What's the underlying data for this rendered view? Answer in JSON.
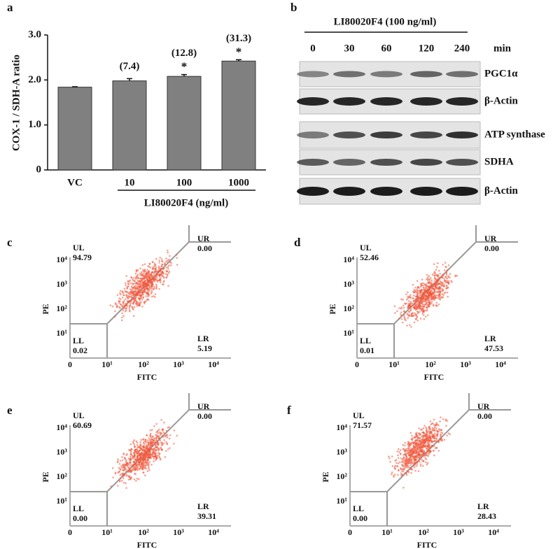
{
  "chart_data": {
    "type": "bar",
    "panel_label": "a",
    "ylabel": "COX-1 / SDH-A ratio",
    "categories": [
      "VC",
      "10",
      "100",
      "1000"
    ],
    "values": [
      1.84,
      1.98,
      2.08,
      2.42
    ],
    "errors": [
      0.01,
      0.05,
      0.04,
      0.03
    ],
    "annotations": [
      null,
      "(7.4)",
      "(12.8)",
      "(31.3)"
    ],
    "significance": [
      null,
      null,
      "*",
      "*"
    ],
    "xlabel": "LI80020F4 (ng/ml)",
    "color": "#808080",
    "ylim": [
      0,
      3
    ],
    "yticks": [
      0,
      {
        "value": 1,
        "label": "1.0"
      },
      {
        "value": 2,
        "label": "2.0"
      },
      {
        "value": 3,
        "label": "3.0"
      }
    ]
  },
  "blot": {
    "panel_label": "b",
    "treatment": "LI80020F4 (100 ng/ml)",
    "lanes": [
      "0",
      "30",
      "60",
      "120",
      "240"
    ],
    "lane_unit": "min",
    "rows": [
      "PGC1α",
      "β-Actin",
      "ATP synthase",
      "SDHA",
      "β-Actin"
    ]
  },
  "flow_plots": [
    {
      "panel_label": "c",
      "ylabel": "PE",
      "xlabel": "FITC",
      "quadrants": [
        {
          "name": "UL",
          "value": "94.79"
        },
        {
          "name": "UR",
          "value": "0.00"
        },
        {
          "name": "LL",
          "value": "0.02"
        },
        {
          "name": "LR",
          "value": "5.19"
        }
      ],
      "yticks": [
        "10⁴",
        "10³",
        "10²",
        "10¹"
      ],
      "xticks": [
        "0",
        "10¹",
        "10²",
        "10³",
        "10⁴"
      ]
    },
    {
      "panel_label": "d",
      "ylabel": "PE",
      "xlabel": "FITC",
      "quadrants": [
        {
          "name": "UL",
          "value": "52.46"
        },
        {
          "name": "UR",
          "value": "0.00"
        },
        {
          "name": "LL",
          "value": "0.01"
        },
        {
          "name": "LR",
          "value": "47.53"
        }
      ],
      "yticks": [
        "10⁴",
        "10³",
        "10²",
        "10¹"
      ],
      "xticks": [
        "0",
        "10¹",
        "10²",
        "10³",
        "10⁴"
      ]
    },
    {
      "panel_label": "e",
      "ylabel": "PE",
      "xlabel": "FITC",
      "quadrants": [
        {
          "name": "UL",
          "value": "60.69"
        },
        {
          "name": "UR",
          "value": "0.00"
        },
        {
          "name": "LL",
          "value": "0.00"
        },
        {
          "name": "LR",
          "value": "39.31"
        }
      ],
      "yticks": [
        "10⁴",
        "10³",
        "10²",
        "10¹"
      ],
      "xticks": [
        "0",
        "10¹",
        "10²",
        "10³",
        "10⁴"
      ]
    },
    {
      "panel_label": "f",
      "ylabel": "PE",
      "xlabel": "FITC",
      "quadrants": [
        {
          "name": "UL",
          "value": "71.57"
        },
        {
          "name": "UR",
          "value": "0.00"
        },
        {
          "name": "LL",
          "value": "0.00"
        },
        {
          "name": "LR",
          "value": "28.43"
        }
      ],
      "yticks": [
        "10⁴",
        "10³",
        "10²",
        "10¹"
      ],
      "xticks": [
        "0",
        "10¹",
        "10²",
        "10³",
        "10⁴"
      ]
    }
  ]
}
